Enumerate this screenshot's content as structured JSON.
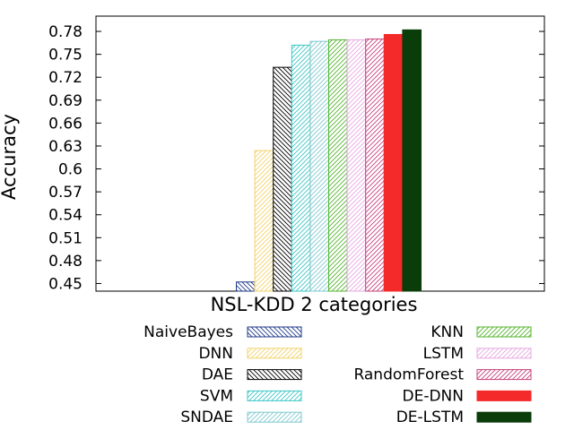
{
  "chart_data": {
    "type": "bar",
    "categories": [
      "NSL-KDD 2 categories"
    ],
    "xlabel": "NSL-KDD 2 categories",
    "ylabel": "Accuracy",
    "ylim": [
      0.44,
      0.8
    ],
    "yticks": [
      "0.45",
      "0.48",
      "0.51",
      "0.54",
      "0.57",
      "0.6",
      "0.63",
      "0.66",
      "0.69",
      "0.72",
      "0.75",
      "0.78"
    ],
    "grid": false,
    "legend_position": "bottom, two columns",
    "series": [
      {
        "name": "NaiveBayes",
        "values": [
          0.452
        ],
        "color": "#1f3a8a",
        "fill": "hatch"
      },
      {
        "name": "DNN",
        "values": [
          0.624
        ],
        "color": "#f2d36b",
        "fill": "hatch"
      },
      {
        "name": "DAE",
        "values": [
          0.733
        ],
        "color": "#000000",
        "fill": "hatch"
      },
      {
        "name": "SVM",
        "values": [
          0.762
        ],
        "color": "#3ec6c6",
        "fill": "hatch"
      },
      {
        "name": "SNDAE",
        "values": [
          0.767
        ],
        "color": "#7fc9cf",
        "fill": "hatch"
      },
      {
        "name": "KNN",
        "values": [
          0.769
        ],
        "color": "#55b52e",
        "fill": "hatch"
      },
      {
        "name": "LSTM",
        "values": [
          0.769
        ],
        "color": "#e6a8e0",
        "fill": "hatch"
      },
      {
        "name": "RandomForest",
        "values": [
          0.77
        ],
        "color": "#c8407a",
        "fill": "hatch"
      },
      {
        "name": "DE-DNN",
        "values": [
          0.776
        ],
        "color": "#f42a2a",
        "fill": "solid"
      },
      {
        "name": "DE-LSTM",
        "values": [
          0.782
        ],
        "color": "#0b3d0b",
        "fill": "solid"
      }
    ]
  }
}
